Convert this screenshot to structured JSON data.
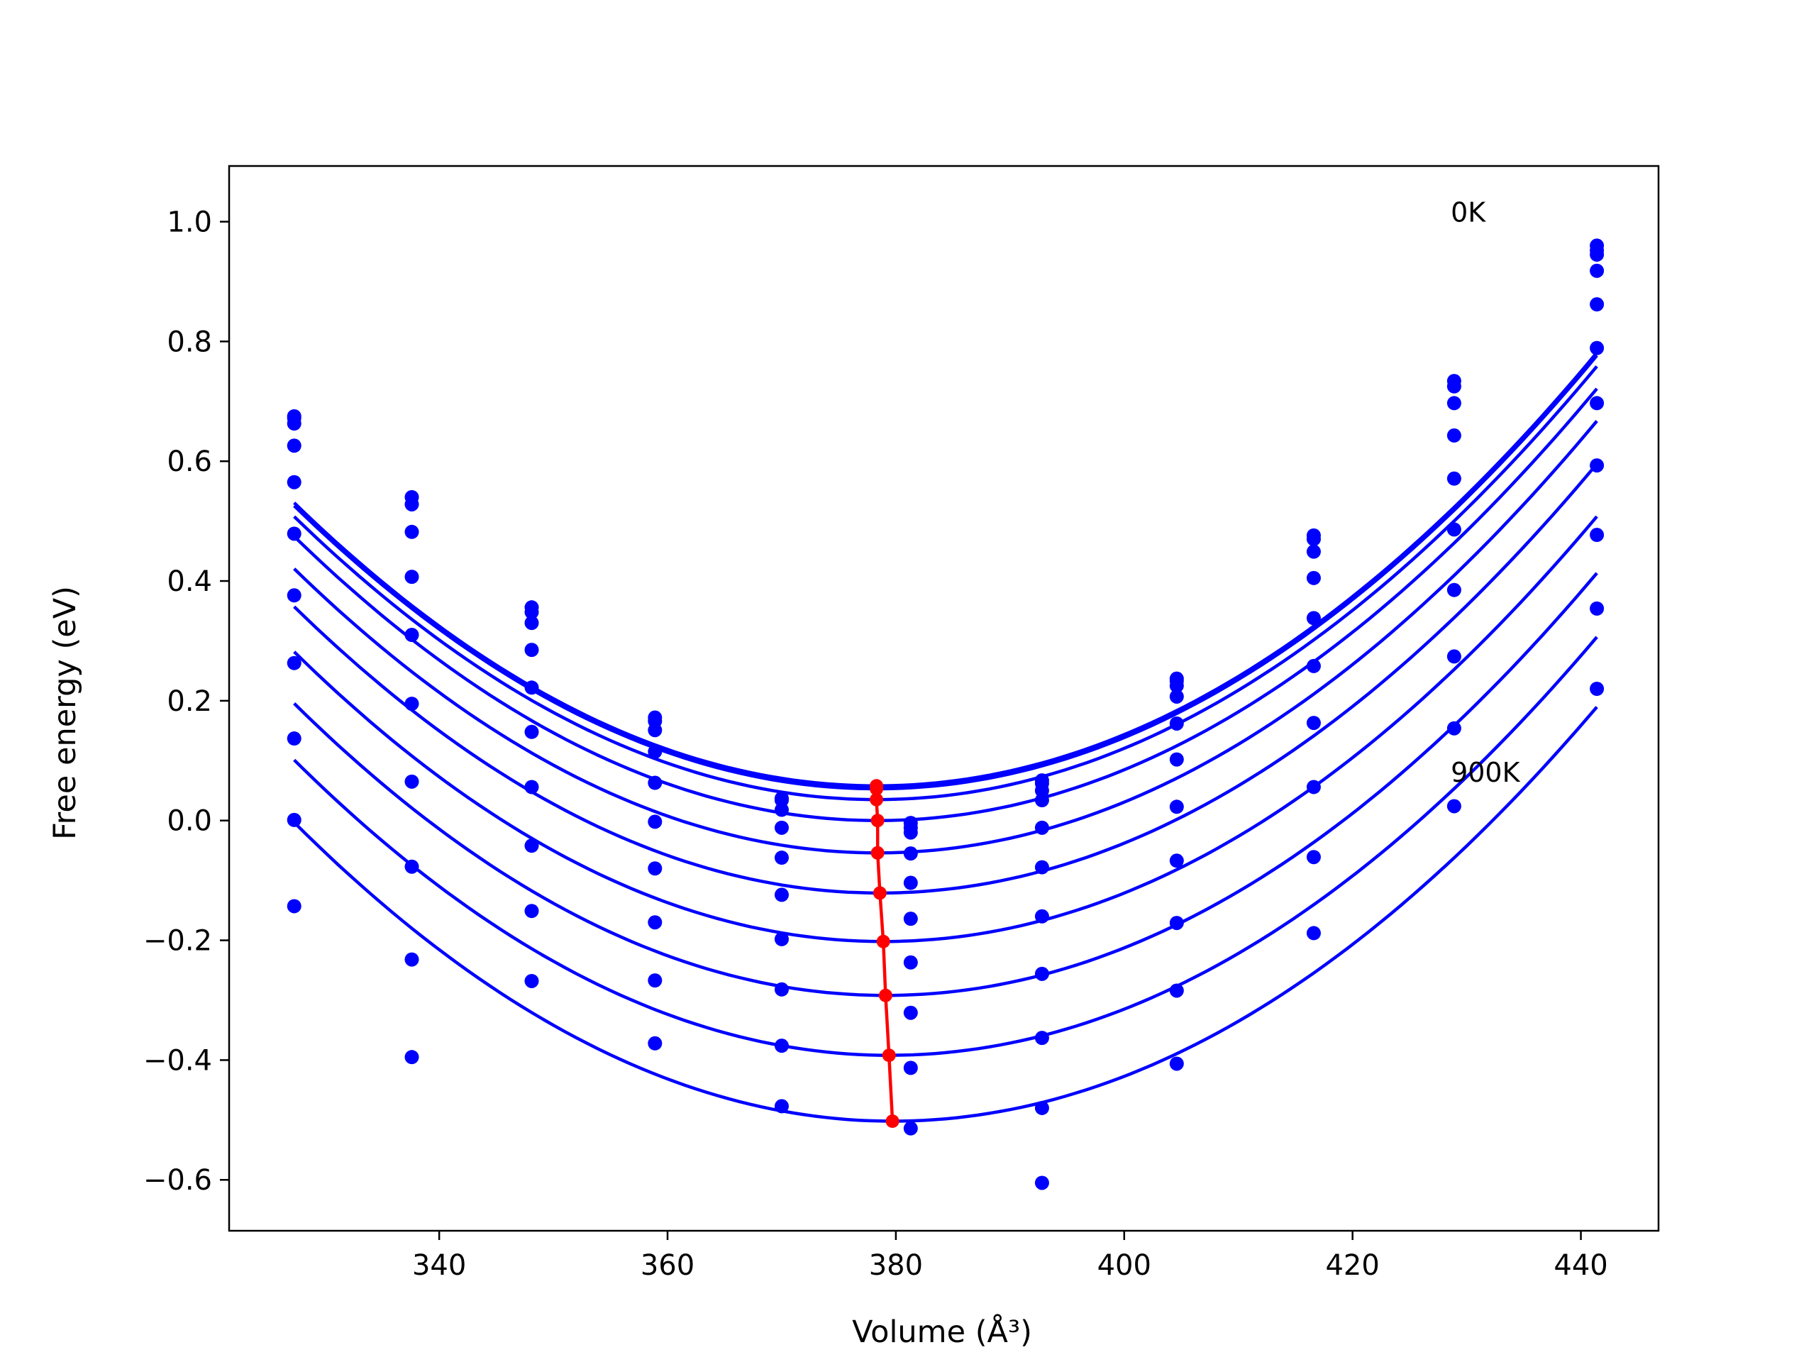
{
  "chart_data": {
    "type": "scatter",
    "xlabel": "Volume (Å³)",
    "ylabel": "Free energy (eV)",
    "xlim": [
      321.6,
      446.8
    ],
    "ylim": [
      -0.685,
      1.093
    ],
    "xticks": [
      340,
      360,
      380,
      400,
      420,
      440
    ],
    "yticks": [
      -0.6,
      -0.4,
      -0.2,
      0.0,
      0.2,
      0.4,
      0.6,
      0.8,
      1.0
    ],
    "ytick_labels": [
      "−0.6",
      "−0.4",
      "−0.2",
      "0.0",
      "0.2",
      "0.4",
      "0.6",
      "0.8",
      "1.0"
    ],
    "grid": false,
    "colors": {
      "fit": "#0000ff",
      "points": "#0000ff",
      "minima": "#ff0000",
      "frame": "#000000"
    },
    "annotations": [
      {
        "text": "0K",
        "x": 428.6,
        "y": 1.0
      },
      {
        "text": "900K",
        "x": 428.6,
        "y": 0.065
      }
    ],
    "volumes": [
      327.3,
      337.6,
      348.1,
      358.9,
      370.0,
      381.3,
      392.8,
      404.6,
      416.6,
      428.9,
      441.4
    ],
    "series": [
      {
        "values": [
          0.675,
          0.54,
          0.356,
          0.172,
          0.037,
          -0.004,
          0.067,
          0.237,
          0.476,
          0.734,
          0.96
        ]
      },
      {
        "values": [
          0.672,
          0.528,
          0.348,
          0.166,
          0.034,
          -0.012,
          0.062,
          0.233,
          0.47,
          0.725,
          0.952
        ]
      },
      {
        "values": [
          0.663,
          0.482,
          0.33,
          0.151,
          0.018,
          -0.02,
          0.05,
          0.225,
          0.449,
          0.697,
          0.945
        ]
      },
      {
        "values": [
          0.626,
          0.407,
          0.285,
          0.115,
          -0.012,
          -0.055,
          0.034,
          0.207,
          0.405,
          0.643,
          0.918
        ]
      },
      {
        "values": [
          0.565,
          0.31,
          0.222,
          0.063,
          -0.062,
          -0.104,
          -0.012,
          0.162,
          0.338,
          0.571,
          0.862
        ]
      },
      {
        "values": [
          0.479,
          0.195,
          0.148,
          -0.002,
          -0.124,
          -0.164,
          -0.078,
          0.102,
          0.258,
          0.486,
          0.789
        ]
      },
      {
        "values": [
          0.376,
          0.065,
          0.056,
          -0.08,
          -0.198,
          -0.237,
          -0.16,
          0.023,
          0.163,
          0.385,
          0.697
        ]
      },
      {
        "values": [
          0.263,
          -0.077,
          -0.042,
          -0.17,
          -0.282,
          -0.321,
          -0.256,
          -0.067,
          0.056,
          0.274,
          0.593
        ]
      },
      {
        "values": [
          0.137,
          -0.232,
          -0.151,
          -0.267,
          -0.376,
          -0.413,
          -0.363,
          -0.171,
          -0.061,
          0.154,
          0.477
        ]
      },
      {
        "values": [
          0.001,
          -0.395,
          -0.268,
          -0.372,
          -0.477,
          -0.514,
          -0.48,
          -0.284,
          -0.188,
          0.024,
          0.354
        ]
      },
      {
        "values": [
          -0.143,
          null,
          null,
          null,
          null,
          null,
          -0.605,
          -0.406,
          null,
          null,
          0.22
        ]
      }
    ],
    "fits": [
      {
        "v0": 378.3,
        "e0": 0.058,
        "k": 0.0001817
      },
      {
        "v0": 378.3,
        "e0": 0.053,
        "k": 0.0001817
      },
      {
        "v0": 378.3,
        "e0": 0.035,
        "k": 0.0001817
      },
      {
        "v0": 378.4,
        "e0": 0.0,
        "k": 0.0001817
      },
      {
        "v0": 378.4,
        "e0": -0.054,
        "k": 0.0001817
      },
      {
        "v0": 378.6,
        "e0": -0.121,
        "k": 0.0001817
      },
      {
        "v0": 378.9,
        "e0": -0.202,
        "k": 0.0001817
      },
      {
        "v0": 379.1,
        "e0": -0.292,
        "k": 0.0001817
      },
      {
        "v0": 379.4,
        "e0": -0.392,
        "k": 0.0001817
      },
      {
        "v0": 379.7,
        "e0": -0.502,
        "k": 0.0001817
      }
    ],
    "fit_range": [
      327.3,
      441.4
    ],
    "minima": {
      "x": [
        378.3,
        378.3,
        378.3,
        378.4,
        378.4,
        378.6,
        378.9,
        379.1,
        379.4,
        379.7
      ],
      "y": [
        0.058,
        0.053,
        0.035,
        0.0,
        -0.054,
        -0.121,
        -0.202,
        -0.292,
        -0.392,
        -0.502
      ]
    }
  }
}
